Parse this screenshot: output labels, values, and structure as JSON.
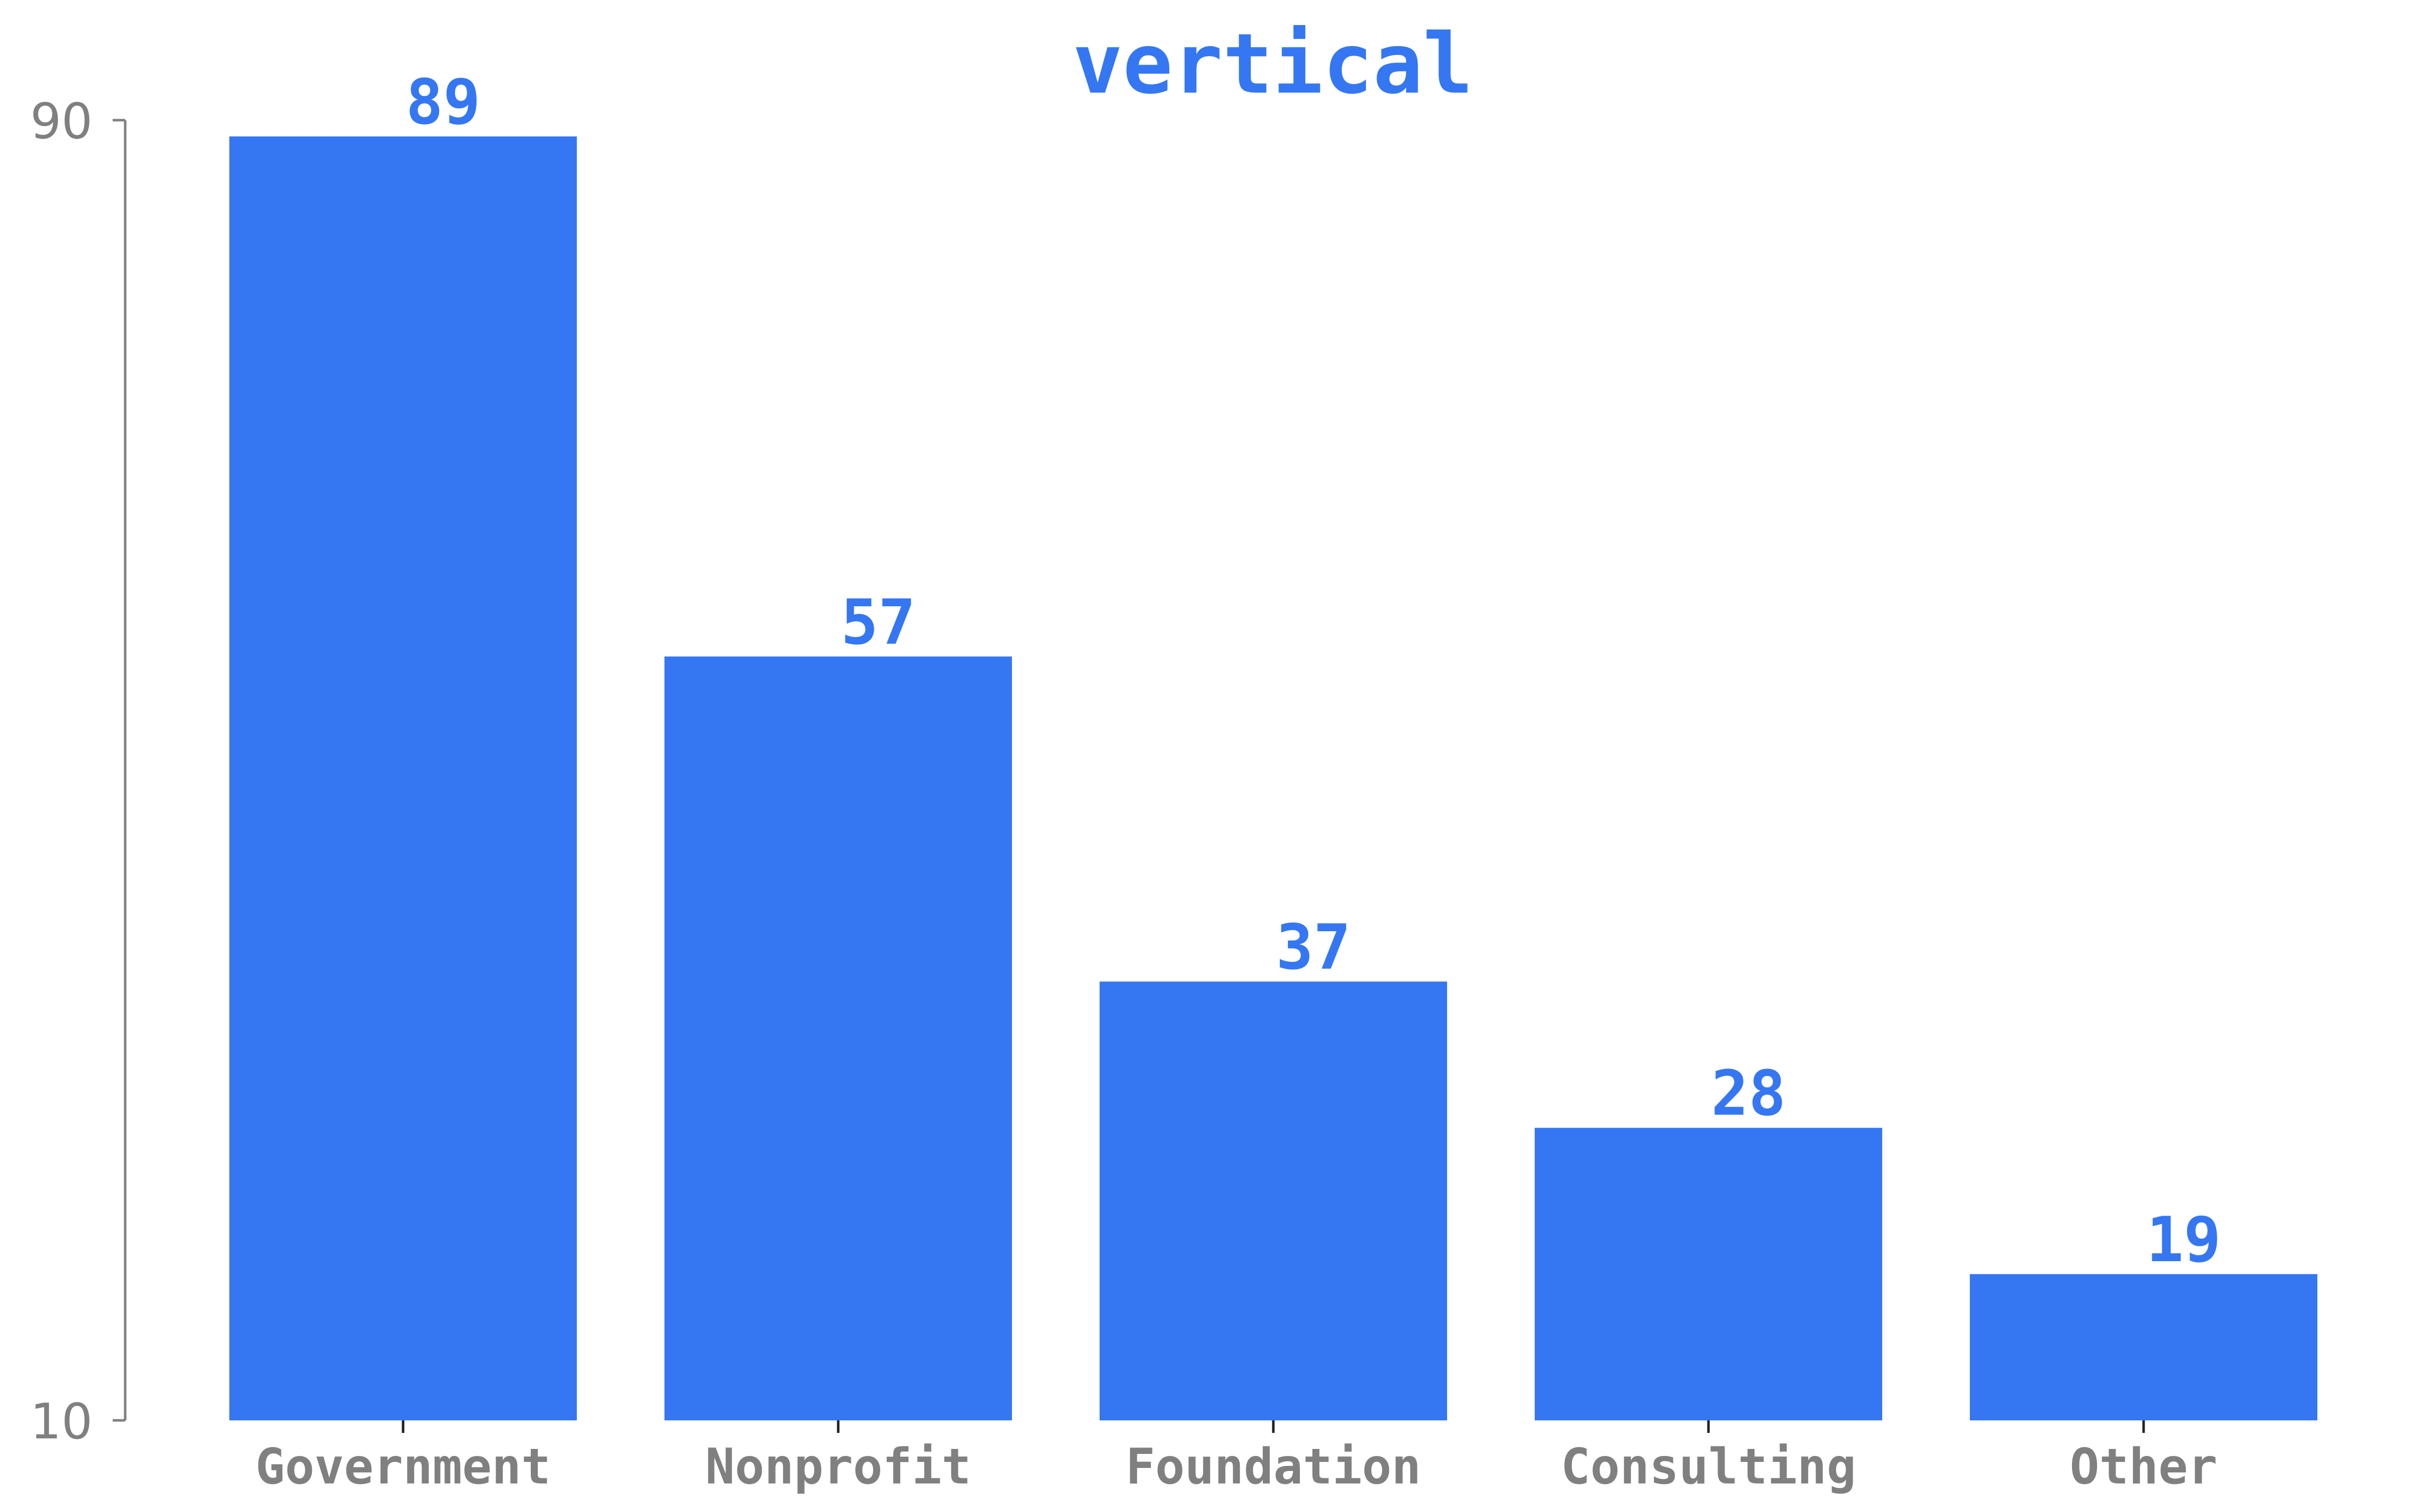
{
  "chart_data": {
    "type": "bar",
    "title": "vertical",
    "xlabel": "",
    "ylabel": "",
    "categories": [
      "Government",
      "Nonprofit",
      "Foundation",
      "Consulting",
      "Other"
    ],
    "values": [
      89,
      57,
      37,
      28,
      19
    ],
    "data_labels": [
      "89",
      "57",
      "37",
      "28",
      "19"
    ],
    "ylim": [
      10,
      90
    ],
    "y_ticks": [
      10,
      90
    ],
    "y_tick_labels": [
      "10",
      "90"
    ],
    "grid": false,
    "legend": "none"
  },
  "colors": {
    "bar": "#3577f3",
    "title": "#3577f3",
    "data_label": "#3577f3",
    "axis": "#808080",
    "tick_label": "#808080"
  }
}
